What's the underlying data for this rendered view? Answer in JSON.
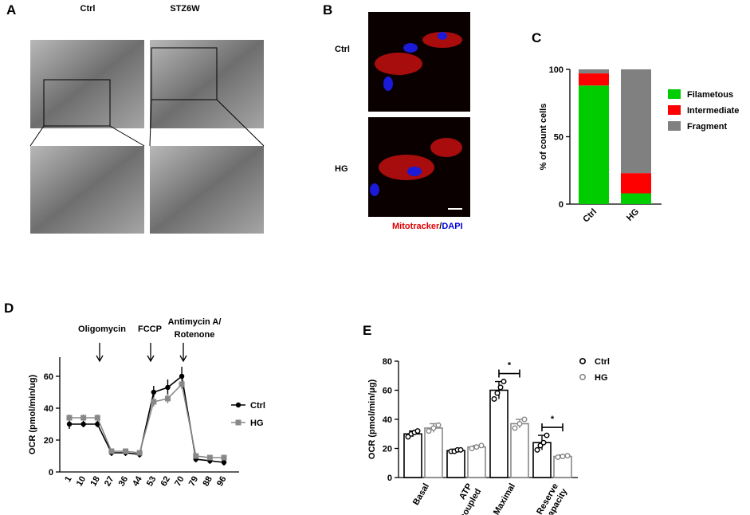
{
  "panels": [
    {
      "label": "A",
      "headers": [
        "Ctrl",
        "STZ6W"
      ]
    },
    {
      "label": "B",
      "rows": [
        "Ctrl",
        "HG"
      ],
      "caption": [
        "Mitotracker",
        "/",
        "DAPI"
      ]
    }
  ],
  "chart_data": [
    {
      "panel_label": "C",
      "type": "stacked_bar",
      "ylabel": "% of count cells",
      "categories": [
        "Ctrl",
        "HG"
      ],
      "series": [
        {
          "name": "Filametous",
          "color": "#00cc00",
          "values": [
            88,
            8
          ]
        },
        {
          "name": "Intermediate",
          "color": "#ff0000",
          "values": [
            9,
            15
          ]
        },
        {
          "name": "Fragment",
          "color": "#808080",
          "values": [
            3,
            77
          ]
        }
      ],
      "ylim": [
        0,
        100
      ],
      "yticks": [
        0,
        50,
        100
      ]
    },
    {
      "panel_label": "D",
      "type": "line",
      "ylabel": "OCR (pmol/min/ug)",
      "categories": [
        "1",
        "10",
        "18",
        "27",
        "36",
        "44",
        "53",
        "62",
        "70",
        "79",
        "88",
        "96"
      ],
      "series": [
        {
          "name": "Ctrl",
          "color": "#000000",
          "marker": "circle",
          "values": [
            30,
            30,
            30,
            12,
            12,
            11,
            50,
            53,
            60,
            8,
            7,
            6
          ],
          "errors": [
            3,
            2,
            2,
            2,
            2,
            2,
            4,
            5,
            6,
            2,
            2,
            2
          ]
        },
        {
          "name": "HG",
          "color": "#888888",
          "marker": "square",
          "values": [
            34,
            34,
            34,
            13,
            13,
            12,
            44,
            46,
            55,
            10,
            9,
            9
          ],
          "errors": [
            2,
            2,
            2,
            1,
            1,
            1,
            3,
            3,
            3,
            1,
            1,
            1
          ]
        }
      ],
      "ylim": [
        0,
        72
      ],
      "yticks": [
        0,
        20,
        40,
        60
      ],
      "annotations": [
        "Oligomycin",
        "FCCP",
        "Antimycin A/",
        "Rotenone"
      ]
    },
    {
      "panel_label": "E",
      "type": "bar",
      "ylabel": "OCR (pmol/min/μg)",
      "categories": [
        [
          "Basal"
        ],
        [
          "ATP",
          "-coupled"
        ],
        [
          "Maximal"
        ],
        [
          "Reserve",
          "capacity"
        ]
      ],
      "series": [
        {
          "name": "Ctrl",
          "color": "#000000",
          "values": [
            30,
            18.5,
            60,
            24
          ],
          "errors": [
            2,
            1,
            6,
            5
          ],
          "points": [
            [
              28,
              30,
              31,
              32
            ],
            [
              18,
              18,
              19,
              19
            ],
            [
              54,
              58,
              62,
              66
            ],
            [
              19,
              22,
              24,
              29
            ]
          ]
        },
        {
          "name": "HG",
          "color": "#888888",
          "values": [
            34,
            21,
            37,
            14.5
          ],
          "errors": [
            3,
            1,
            3,
            1
          ],
          "points": [
            [
              32,
              34,
              36
            ],
            [
              20,
              21,
              22
            ],
            [
              34,
              37,
              40
            ],
            [
              14,
              14.5,
              15
            ]
          ]
        }
      ],
      "ylim": [
        0,
        80
      ],
      "yticks": [
        0,
        20,
        40,
        60,
        80
      ],
      "significance": [
        {
          "category": 2,
          "label": "*"
        },
        {
          "category": 3,
          "label": "*"
        }
      ]
    }
  ]
}
